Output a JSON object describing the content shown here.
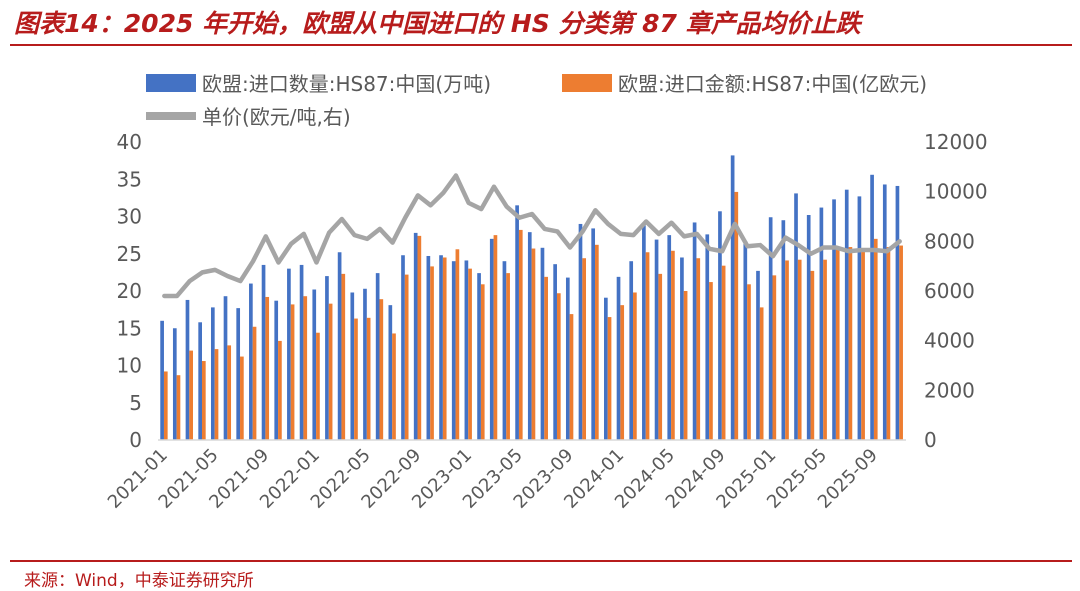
{
  "header": {
    "title": "图表14：2025 年开始，欧盟从中国进口的 HS 分类第 87 章产品均价止跌"
  },
  "footer": {
    "source": "来源：Wind，中泰证券研究所"
  },
  "colors": {
    "quantity": "#4472c4",
    "amount": "#ed7d31",
    "price": "#a5a5a5",
    "accent": "#b71c1c"
  },
  "chart_data": {
    "type": "bar",
    "title": "2025 年开始，欧盟从中国进口的 HS 分类第 87 章产品均价止跌",
    "y_left": {
      "min": 0,
      "max": 40,
      "step": 5,
      "ticks": [
        "0",
        "5",
        "10",
        "15",
        "20",
        "25",
        "30",
        "35",
        "40"
      ]
    },
    "y_right": {
      "min": 0,
      "max": 12000,
      "step": 2000,
      "ticks": [
        "0",
        "2000",
        "4000",
        "6000",
        "8000",
        "10000",
        "12000"
      ]
    },
    "x_tick_labels": [
      "2021-01",
      "2021-05",
      "2021-09",
      "2022-01",
      "2022-05",
      "2022-09",
      "2023-01",
      "2023-05",
      "2023-09",
      "2024-01",
      "2024-05",
      "2024-09",
      "2025-01",
      "2025-05",
      "2025-09"
    ],
    "categories": [
      "2021-01",
      "2021-02",
      "2021-03",
      "2021-04",
      "2021-05",
      "2021-06",
      "2021-07",
      "2021-08",
      "2021-09",
      "2021-10",
      "2021-11",
      "2021-12",
      "2022-01",
      "2022-02",
      "2022-03",
      "2022-04",
      "2022-05",
      "2022-06",
      "2022-07",
      "2022-08",
      "2022-09",
      "2022-10",
      "2022-11",
      "2022-12",
      "2023-01",
      "2023-02",
      "2023-03",
      "2023-04",
      "2023-05",
      "2023-06",
      "2023-07",
      "2023-08",
      "2023-09",
      "2023-10",
      "2023-11",
      "2023-12",
      "2024-01",
      "2024-02",
      "2024-03",
      "2024-04",
      "2024-05",
      "2024-06",
      "2024-07",
      "2024-08",
      "2024-09",
      "2024-10",
      "2024-11",
      "2024-12",
      "2025-01",
      "2025-02",
      "2025-03",
      "2025-04",
      "2025-05",
      "2025-06",
      "2025-07",
      "2025-08",
      "2025-09",
      "2025-10",
      "2025-11"
    ],
    "series": [
      {
        "name": "欧盟:进口数量:HS87:中国(万吨)",
        "type": "bar",
        "axis": "left",
        "values": [
          16.0,
          15.0,
          18.8,
          15.8,
          17.8,
          19.3,
          17.7,
          21.0,
          23.5,
          18.7,
          23.0,
          23.5,
          20.2,
          22.0,
          25.2,
          19.8,
          20.3,
          22.4,
          18.1,
          24.8,
          27.8,
          24.7,
          24.8,
          24.0,
          24.1,
          22.4,
          27.0,
          24.0,
          31.5,
          27.9,
          25.8,
          23.6,
          21.8,
          29.0,
          28.4,
          19.1,
          21.9,
          24.0,
          28.8,
          26.9,
          27.5,
          24.5,
          29.2,
          27.6,
          30.7,
          38.2,
          26.7,
          22.7,
          29.9,
          29.5,
          33.1,
          30.2,
          31.2,
          32.3,
          33.6,
          32.7,
          35.6,
          34.3,
          34.1
        ]
      },
      {
        "name": "欧盟:进口金额:HS87:中国(亿欧元)",
        "type": "bar",
        "axis": "left",
        "values": [
          9.2,
          8.7,
          12.0,
          10.6,
          12.2,
          12.7,
          11.2,
          15.2,
          19.2,
          13.3,
          18.2,
          19.3,
          14.4,
          18.3,
          22.3,
          16.3,
          16.4,
          18.9,
          14.3,
          22.2,
          27.4,
          23.3,
          24.5,
          25.6,
          23.0,
          20.9,
          27.5,
          22.4,
          28.2,
          25.7,
          21.9,
          19.7,
          16.9,
          24.4,
          26.2,
          16.5,
          18.1,
          19.8,
          25.2,
          22.3,
          25.4,
          20.0,
          24.4,
          21.2,
          23.4,
          33.3,
          20.9,
          17.8,
          22.1,
          24.1,
          24.2,
          22.7,
          24.2,
          25.8,
          25.9,
          25.6,
          27.0,
          25.9,
          26.1
        ]
      },
      {
        "name": "单价(欧元/吨,右)",
        "type": "line",
        "axis": "right",
        "values": [
          5800,
          5800,
          6400,
          6750,
          6850,
          6600,
          6400,
          7200,
          8200,
          7150,
          7900,
          8300,
          7150,
          8350,
          8900,
          8250,
          8100,
          8500,
          7950,
          8950,
          9850,
          9450,
          9950,
          10650,
          9550,
          9300,
          10200,
          9400,
          8950,
          9100,
          8500,
          8400,
          7750,
          8400,
          9250,
          8700,
          8300,
          8250,
          8800,
          8300,
          8750,
          8200,
          8300,
          7700,
          7600,
          8700,
          7800,
          7850,
          7400,
          8150,
          7850,
          7500,
          7750,
          7750,
          7600,
          7650,
          7650,
          7600,
          8000
        ]
      }
    ]
  }
}
